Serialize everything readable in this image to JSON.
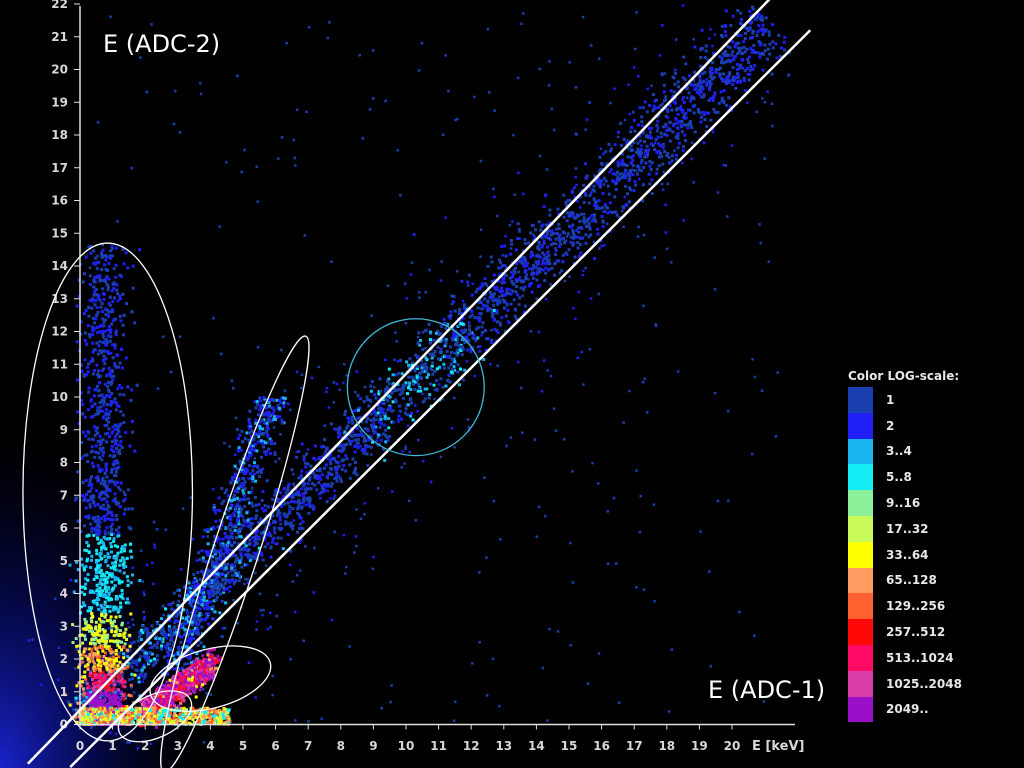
{
  "chart_data": {
    "type": "scatter",
    "subtype": "2D density histogram (log color scale)",
    "x_label": "E [keV]",
    "y_label": "E (ADC-2)",
    "x_axis_title": "E (ADC-1)",
    "xlim": [
      0,
      21.5
    ],
    "ylim": [
      0,
      22
    ],
    "x_ticks": [
      "0",
      "1",
      "2",
      "3",
      "4",
      "5",
      "6",
      "7",
      "8",
      "9",
      "10",
      "11",
      "12",
      "13",
      "14",
      "15",
      "16",
      "17",
      "18",
      "19",
      "20"
    ],
    "y_ticks": [
      "0",
      "1",
      "2",
      "3",
      "4",
      "5",
      "6",
      "7",
      "8",
      "9",
      "10",
      "11",
      "12",
      "13",
      "14",
      "15",
      "16",
      "17",
      "18",
      "19",
      "20",
      "21",
      "22"
    ],
    "diagonal_band": {
      "slope": 1,
      "from_x": 0,
      "to_x": 21,
      "description_points": [
        [
          1,
          1
        ],
        [
          10.5,
          10.5
        ],
        [
          21,
          21.6
        ]
      ]
    },
    "density_regions": [
      {
        "name": "vertical low-x cluster",
        "x": [
          0,
          1.8
        ],
        "y": [
          0,
          14.5
        ],
        "peak_count_class": "2049.."
      },
      {
        "name": "main diagonal",
        "x": [
          0,
          21
        ],
        "y": [
          0,
          22
        ],
        "peak_count_class": "129..256"
      },
      {
        "name": "hot spot",
        "x": [
          2,
          4.2
        ],
        "y": [
          0.2,
          2.1
        ],
        "peak_count_class": "2049.."
      }
    ],
    "annotations": [
      {
        "shape": "line",
        "color": "#ffffff",
        "points": [
          [
            -1.6,
            -1.2
          ],
          [
            21.3,
            22.3
          ]
        ]
      },
      {
        "shape": "line",
        "color": "#ffffff",
        "points": [
          [
            -0.3,
            -1.3
          ],
          [
            22.4,
            21.2
          ]
        ]
      },
      {
        "shape": "ellipse",
        "color": "#ffffff",
        "center": [
          0.85,
          7.1
        ],
        "rx_data": 2.6,
        "ry_data": 7.6,
        "rotation_deg": 0
      },
      {
        "shape": "ellipse",
        "color": "#ffffff",
        "center": [
          4.75,
          5.2
        ],
        "rx_data": 0.7,
        "ry_data": 7.0,
        "rotation_deg": 18
      },
      {
        "shape": "ellipse",
        "color": "#ffffff",
        "center": [
          4.0,
          1.4
        ],
        "rx_data": 1.9,
        "ry_data": 0.9,
        "rotation_deg": -15
      },
      {
        "shape": "ellipse",
        "color": "#ffffff",
        "center": [
          2.3,
          0.25
        ],
        "rx_data": 1.2,
        "ry_data": 0.65,
        "rotation_deg": -25
      },
      {
        "shape": "circle",
        "color": "#3fb8d8",
        "center": [
          10.3,
          10.3
        ],
        "r_data": 2.1
      }
    ],
    "legend": {
      "title": "Color LOG-scale:",
      "placement": "right",
      "entries": [
        {
          "label": "1",
          "color": "#1a3fb0"
        },
        {
          "label": "2",
          "color": "#1e1ef5"
        },
        {
          "label": "3..4",
          "color": "#1ab4f0"
        },
        {
          "label": "5..8",
          "color": "#12ecf5"
        },
        {
          "label": "9..16",
          "color": "#8cf09a"
        },
        {
          "label": "17..32",
          "color": "#c8fa5a"
        },
        {
          "label": "33..64",
          "color": "#ffff00"
        },
        {
          "label": "65..128",
          "color": "#ff9a60"
        },
        {
          "label": "129..256",
          "color": "#ff6030"
        },
        {
          "label": "257..512",
          "color": "#ff0808"
        },
        {
          "label": "513..1024",
          "color": "#ff0a64"
        },
        {
          "label": "1025..2048",
          "color": "#d83ca8"
        },
        {
          "label": "2049..",
          "color": "#9a10c8"
        }
      ]
    },
    "background": "#000000",
    "grid": false
  }
}
